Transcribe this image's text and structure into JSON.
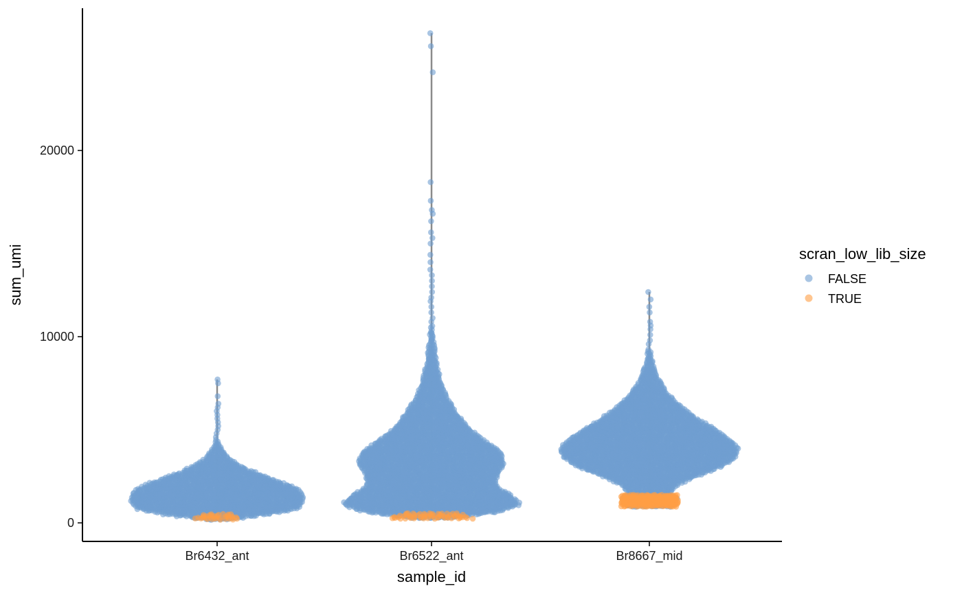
{
  "chart_data": {
    "type": "scatter",
    "subtype": "beeswarm-violin",
    "title": "",
    "xlabel": "sample_id",
    "ylabel": "sum_umi",
    "categories": [
      "Br6432_ant",
      "Br6522_ant",
      "Br8667_mid"
    ],
    "ylim": [
      -1000,
      27500
    ],
    "yticks": [
      0,
      10000,
      20000
    ],
    "ytick_labels": [
      "0",
      "10000",
      "20000"
    ],
    "grid": false,
    "legend": {
      "title": "scran_low_lib_size",
      "position": "right",
      "entries": [
        {
          "label": "FALSE",
          "color": "#6F9FD0"
        },
        {
          "label": "TRUE",
          "color": "#FF9F45"
        }
      ]
    },
    "colors": {
      "FALSE": "#6F9FD0",
      "TRUE": "#FF9F45",
      "line": "#8a8a8a"
    },
    "series": [
      {
        "category": "Br6432_ant",
        "line_range": [
          300,
          7700
        ],
        "true_range": [
          200,
          450
        ],
        "outliers_false": [
          4600,
          4800,
          5000,
          5200,
          5400,
          5600,
          5800,
          6000,
          6200,
          6400,
          6800,
          7500,
          7700
        ],
        "density_profile": [
          [
            200,
            0.15
          ],
          [
            500,
            0.65
          ],
          [
            800,
            0.95
          ],
          [
            1200,
            1.0
          ],
          [
            1600,
            0.98
          ],
          [
            1900,
            0.9
          ],
          [
            2300,
            0.68
          ],
          [
            2700,
            0.44
          ],
          [
            3100,
            0.25
          ],
          [
            3500,
            0.13
          ],
          [
            3900,
            0.07
          ],
          [
            4200,
            0.03
          ],
          [
            4500,
            0.012
          ]
        ]
      },
      {
        "category": "Br6522_ant",
        "line_range": [
          300,
          26300
        ],
        "true_range": [
          250,
          500
        ],
        "outliers_false": [
          10800,
          11000,
          11300,
          11600,
          11900,
          12100,
          12400,
          12700,
          13000,
          13300,
          13600,
          14000,
          14400,
          15000,
          15300,
          15600,
          16200,
          16600,
          16800,
          17300,
          18300,
          24200,
          25600,
          26300
        ],
        "density_profile": [
          [
            300,
            0.28
          ],
          [
            600,
            0.75
          ],
          [
            1000,
            1.0
          ],
          [
            1500,
            0.88
          ],
          [
            2000,
            0.72
          ],
          [
            2600,
            0.74
          ],
          [
            3200,
            0.82
          ],
          [
            3800,
            0.78
          ],
          [
            4400,
            0.6
          ],
          [
            5000,
            0.43
          ],
          [
            5800,
            0.3
          ],
          [
            6600,
            0.19
          ],
          [
            7400,
            0.12
          ],
          [
            8200,
            0.075
          ],
          [
            9000,
            0.045
          ],
          [
            9800,
            0.025
          ],
          [
            10600,
            0.012
          ]
        ]
      },
      {
        "category": "Br8667_mid",
        "line_range": [
          900,
          12400
        ],
        "true_range": [
          900,
          1500
        ],
        "outliers_false": [
          9600,
          9800,
          10100,
          10400,
          10600,
          10800,
          11300,
          11600,
          12000,
          12400
        ],
        "density_profile": [
          [
            900,
            0.26
          ],
          [
            1300,
            0.32
          ],
          [
            1600,
            0.24
          ],
          [
            2000,
            0.3
          ],
          [
            2500,
            0.52
          ],
          [
            3000,
            0.8
          ],
          [
            3500,
            0.96
          ],
          [
            4000,
            1.0
          ],
          [
            4500,
            0.9
          ],
          [
            5000,
            0.74
          ],
          [
            5500,
            0.57
          ],
          [
            6000,
            0.42
          ],
          [
            6500,
            0.3
          ],
          [
            7000,
            0.2
          ],
          [
            7500,
            0.13
          ],
          [
            8000,
            0.08
          ],
          [
            8500,
            0.045
          ],
          [
            9000,
            0.025
          ],
          [
            9400,
            0.012
          ]
        ]
      }
    ]
  }
}
